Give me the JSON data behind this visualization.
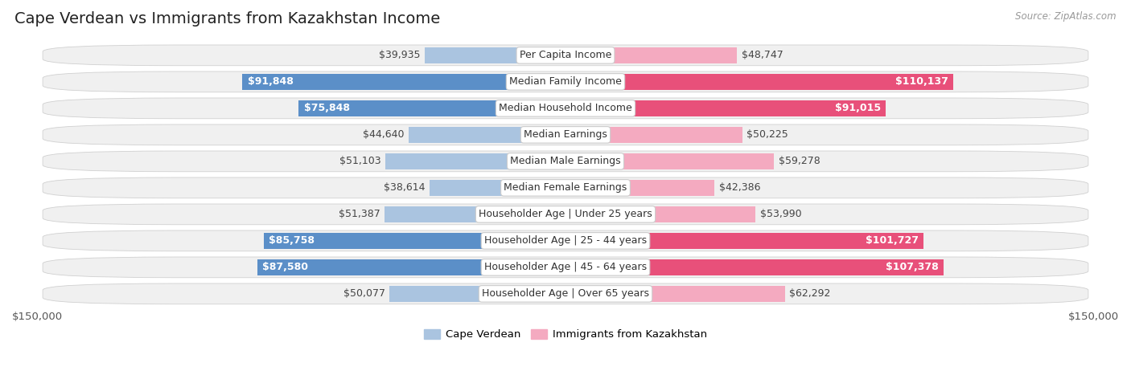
{
  "title": "Cape Verdean vs Immigrants from Kazakhstan Income",
  "source": "Source: ZipAtlas.com",
  "categories": [
    "Per Capita Income",
    "Median Family Income",
    "Median Household Income",
    "Median Earnings",
    "Median Male Earnings",
    "Median Female Earnings",
    "Householder Age | Under 25 years",
    "Householder Age | 25 - 44 years",
    "Householder Age | 45 - 64 years",
    "Householder Age | Over 65 years"
  ],
  "cape_verdean": [
    39935,
    91848,
    75848,
    44640,
    51103,
    38614,
    51387,
    85758,
    87580,
    50077
  ],
  "kazakhstan": [
    48747,
    110137,
    91015,
    50225,
    59278,
    42386,
    53990,
    101727,
    107378,
    62292
  ],
  "cape_verdean_labels": [
    "$39,935",
    "$91,848",
    "$75,848",
    "$44,640",
    "$51,103",
    "$38,614",
    "$51,387",
    "$85,758",
    "$87,580",
    "$50,077"
  ],
  "kazakhstan_labels": [
    "$48,747",
    "$110,137",
    "$91,015",
    "$50,225",
    "$59,278",
    "$42,386",
    "$53,990",
    "$101,727",
    "$107,378",
    "$62,292"
  ],
  "color_cape_verdean_light": "#aac4e0",
  "color_cape_verdean_dark": "#5b8fc8",
  "color_kazakhstan_light": "#f4aac0",
  "color_kazakhstan_dark": "#e8507a",
  "threshold": 70000,
  "max_value": 150000,
  "bar_height": 0.62,
  "background_color": "#ffffff",
  "row_bg": "#f0f0f0",
  "label_fontsize": 9,
  "title_fontsize": 14,
  "category_fontsize": 9,
  "source_fontsize": 8.5
}
